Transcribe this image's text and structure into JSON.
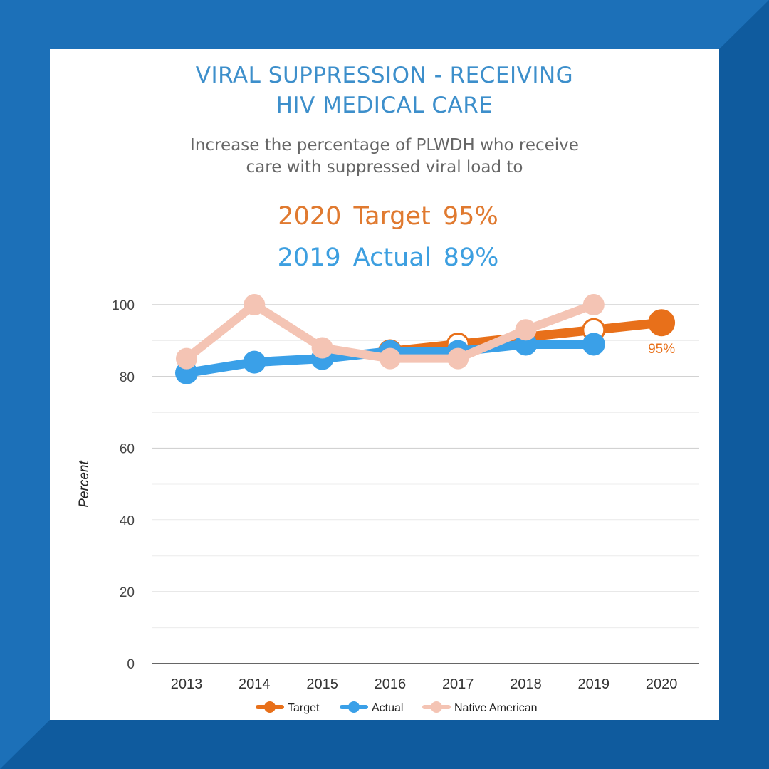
{
  "header": {
    "title_line1": "VIRAL SUPPRESSION - RECEIVING",
    "title_line2": "HIV MEDICAL CARE",
    "subtitle_line1": "Increase the percentage of PLWDH who receive",
    "subtitle_line2": "care with suppressed viral load to",
    "target_text": "2020 Target 95%",
    "actual_text": "2019 Actual 89%"
  },
  "colors": {
    "frame": "#1c70b8",
    "frame_dark": "#0f5b9e",
    "target": "#e8701a",
    "actual": "#3aa0e8",
    "native": "#f4c4b4"
  },
  "chart_data": {
    "type": "line",
    "title": "",
    "xlabel": "",
    "ylabel": "Percent",
    "categories": [
      "2013",
      "2014",
      "2015",
      "2016",
      "2017",
      "2018",
      "2019",
      "2020"
    ],
    "ylim": [
      0,
      100
    ],
    "yticks": [
      0,
      20,
      40,
      60,
      80,
      100
    ],
    "grid": true,
    "legend": "bottom",
    "series": [
      {
        "name": "Target",
        "color": "#e8701a",
        "values": [
          null,
          null,
          null,
          87,
          89,
          91,
          93,
          95
        ],
        "hollow_at": [
          4,
          6
        ],
        "labels": {
          "7": "95%"
        }
      },
      {
        "name": "Actual",
        "color": "#3aa0e8",
        "values": [
          81,
          84,
          85,
          87,
          87,
          89,
          89,
          null
        ]
      },
      {
        "name": "Native American",
        "color": "#f4c4b4",
        "values": [
          85,
          100,
          88,
          85,
          85,
          93,
          100,
          null
        ]
      }
    ]
  }
}
